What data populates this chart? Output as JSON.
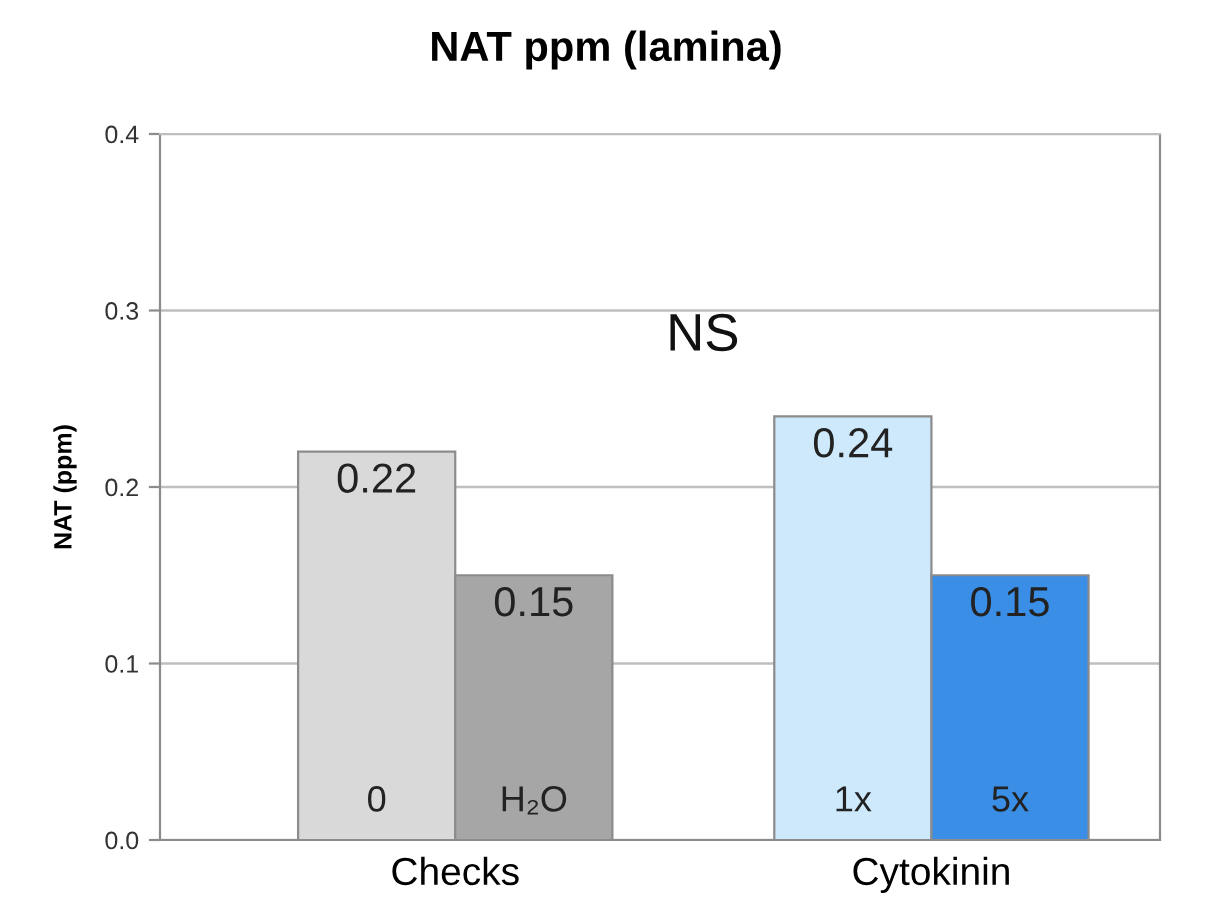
{
  "chart_data": {
    "type": "bar",
    "title": "NAT ppm (lamina)",
    "ylabel": "NAT (ppm)",
    "categories": [
      "Checks",
      "Cytokinin"
    ],
    "series": [
      {
        "colors": [
          "#d9d9d9",
          "#cde9fb"
        ],
        "values": [
          0.22,
          0.24
        ]
      },
      {
        "colors": [
          "#a6a6a6",
          "#3a8ee6"
        ],
        "values": [
          0.15,
          0.15
        ]
      }
    ],
    "annotations": [
      "0",
      "H₂O",
      "1x",
      "5x",
      "NS"
    ],
    "ylim": [
      0,
      0.4
    ],
    "yticks": [
      {
        "value": 0,
        "label": "0.0"
      },
      0.1,
      0.2,
      0.3,
      0.4
    ],
    "grid": "y",
    "data_labels": true
  }
}
